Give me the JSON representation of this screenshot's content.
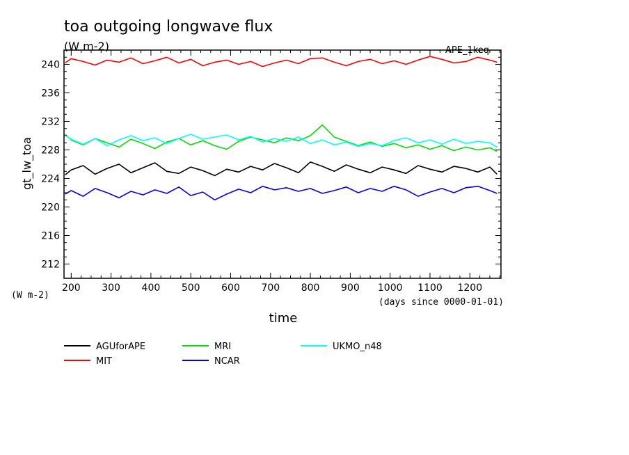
{
  "chart_data": {
    "type": "line",
    "title": "toa outgoing longwave flux",
    "subtitle": "(W m-2)",
    "annotation": "APE_1keq",
    "xlabel": "time",
    "x_units": "(days since 0000-01-01)",
    "ylabel": "gt_lw_toa",
    "y_units": "(W m-2)",
    "xlim": [
      182,
      1278
    ],
    "ylim": [
      210,
      242
    ],
    "x_ticks": [
      "200",
      "300",
      "400",
      "500",
      "600",
      "700",
      "800",
      "900",
      "1000",
      "1100",
      "1200"
    ],
    "y_ticks": [
      "212",
      "216",
      "220",
      "224",
      "228",
      "232",
      "236",
      "240"
    ],
    "grid": false,
    "legend_position": "bottom",
    "series": [
      {
        "name": "AGUforAPE",
        "color": "#000000",
        "x": [
          185,
          200,
          230,
          260,
          290,
          320,
          350,
          380,
          410,
          440,
          470,
          500,
          530,
          560,
          590,
          620,
          650,
          680,
          710,
          740,
          770,
          800,
          830,
          860,
          890,
          920,
          950,
          980,
          1010,
          1040,
          1070,
          1100,
          1130,
          1160,
          1190,
          1220,
          1250,
          1268
        ],
        "y": [
          224.5,
          225.2,
          225.8,
          224.6,
          225.4,
          226.0,
          224.8,
          225.5,
          226.2,
          225.0,
          224.7,
          225.6,
          225.1,
          224.4,
          225.3,
          224.9,
          225.7,
          225.2,
          226.1,
          225.5,
          224.8,
          226.3,
          225.7,
          225.0,
          225.9,
          225.3,
          224.8,
          225.6,
          225.2,
          224.7,
          225.8,
          225.3,
          224.9,
          225.7,
          225.4,
          224.9,
          225.6,
          224.6
        ]
      },
      {
        "name": "MIT",
        "color": "#ff0000",
        "x": [
          185,
          200,
          230,
          260,
          290,
          320,
          350,
          380,
          410,
          440,
          470,
          500,
          530,
          560,
          590,
          620,
          650,
          680,
          710,
          740,
          770,
          800,
          830,
          860,
          890,
          920,
          950,
          980,
          1010,
          1040,
          1070,
          1100,
          1130,
          1160,
          1190,
          1220,
          1250,
          1268
        ],
        "y": [
          240.2,
          240.8,
          240.4,
          239.9,
          240.6,
          240.3,
          240.9,
          240.1,
          240.5,
          241.0,
          240.2,
          240.7,
          239.8,
          240.3,
          240.6,
          240.0,
          240.4,
          239.7,
          240.2,
          240.6,
          240.1,
          240.8,
          240.9,
          240.3,
          239.8,
          240.4,
          240.7,
          240.1,
          240.5,
          240.0,
          240.6,
          241.1,
          240.7,
          240.2,
          240.4,
          241.0,
          240.6,
          240.3
        ]
      },
      {
        "name": "MRI",
        "color": "#00e000",
        "x": [
          185,
          200,
          230,
          260,
          290,
          320,
          350,
          380,
          410,
          440,
          470,
          500,
          530,
          560,
          590,
          620,
          650,
          680,
          710,
          740,
          770,
          800,
          830,
          860,
          890,
          920,
          950,
          980,
          1010,
          1040,
          1070,
          1100,
          1130,
          1160,
          1190,
          1220,
          1250,
          1268
        ],
        "y": [
          230.2,
          229.4,
          228.7,
          229.6,
          229.0,
          228.4,
          229.5,
          228.9,
          228.2,
          229.1,
          229.6,
          228.7,
          229.3,
          228.6,
          228.1,
          229.2,
          229.8,
          229.4,
          229.0,
          229.7,
          229.3,
          230.0,
          231.5,
          229.8,
          229.2,
          228.6,
          229.1,
          228.5,
          228.9,
          228.3,
          228.7,
          228.1,
          228.6,
          227.9,
          228.4,
          228.0,
          228.3,
          227.8
        ]
      },
      {
        "name": "NCAR",
        "color": "#0000ee",
        "x": [
          185,
          200,
          230,
          260,
          290,
          320,
          350,
          380,
          410,
          440,
          470,
          500,
          530,
          560,
          590,
          620,
          650,
          680,
          710,
          740,
          770,
          800,
          830,
          860,
          890,
          920,
          950,
          980,
          1010,
          1040,
          1070,
          1100,
          1130,
          1160,
          1190,
          1220,
          1250,
          1268
        ],
        "y": [
          221.8,
          222.3,
          221.5,
          222.6,
          222.0,
          221.3,
          222.2,
          221.7,
          222.4,
          221.9,
          222.8,
          221.6,
          222.1,
          221.0,
          221.8,
          222.5,
          222.0,
          222.9,
          222.4,
          222.7,
          222.2,
          222.6,
          221.9,
          222.3,
          222.8,
          222.0,
          222.6,
          222.2,
          222.9,
          222.4,
          221.5,
          222.1,
          222.6,
          222.0,
          222.7,
          222.9,
          222.3,
          221.9
        ]
      },
      {
        "name": "UKMO_n48",
        "color": "#00ffff",
        "x": [
          185,
          200,
          230,
          260,
          290,
          320,
          350,
          380,
          410,
          440,
          470,
          500,
          530,
          560,
          590,
          620,
          650,
          680,
          710,
          740,
          770,
          800,
          830,
          860,
          890,
          920,
          950,
          980,
          1010,
          1040,
          1070,
          1100,
          1130,
          1160,
          1190,
          1220,
          1250,
          1268
        ],
        "y": [
          230.1,
          229.5,
          228.8,
          229.6,
          228.6,
          229.4,
          230.0,
          229.3,
          229.7,
          228.9,
          229.6,
          230.2,
          229.5,
          229.8,
          230.1,
          229.4,
          229.9,
          229.1,
          229.6,
          229.2,
          229.8,
          228.9,
          229.4,
          228.7,
          229.1,
          228.5,
          228.9,
          228.6,
          229.3,
          229.7,
          229.0,
          229.4,
          228.8,
          229.5,
          228.9,
          229.2,
          229.0,
          228.4
        ]
      }
    ]
  }
}
